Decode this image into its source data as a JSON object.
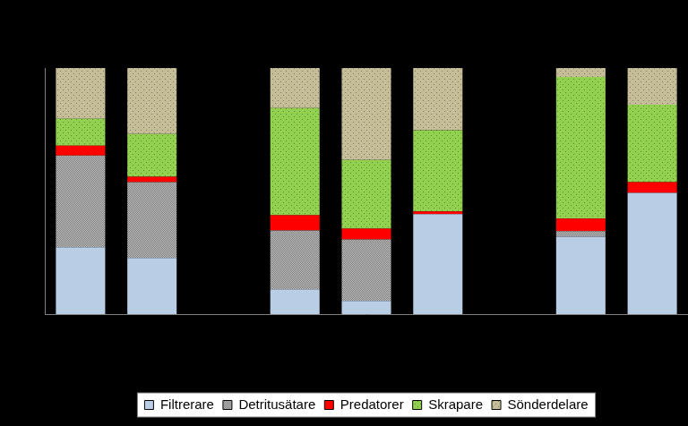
{
  "chart_data": {
    "type": "bar",
    "stacked": true,
    "legend": "bottom",
    "grid": false,
    "tick_labels": false,
    "categories": [
      null,
      null,
      null,
      null,
      null,
      null,
      null,
      null,
      null
    ],
    "ylim": [
      0,
      100
    ],
    "series": [
      {
        "name": "Filtrerare",
        "color": "#b9cde5",
        "values": [
          27.2,
          22.8,
          null,
          10.1,
          5.4,
          40.6,
          null,
          31.5,
          49.3
        ]
      },
      {
        "name": "Detritusätare",
        "color": "#bfbfbf",
        "values": [
          37.3,
          30.8,
          null,
          23.9,
          25.0,
          0,
          null,
          2.2,
          0
        ]
      },
      {
        "name": "Predatorer",
        "color": "#ff0000",
        "values": [
          4.0,
          2.2,
          null,
          6.2,
          4.3,
          1.1,
          null,
          5.1,
          4.3
        ]
      },
      {
        "name": "Skrapare",
        "color": "#92d050",
        "values": [
          10.9,
          17.4,
          null,
          43.5,
          27.9,
          33.0,
          null,
          57.6,
          31.5
        ]
      },
      {
        "name": "Sönderdelare",
        "color": "#c4bd97",
        "values": [
          20.6,
          26.8,
          null,
          16.3,
          37.4,
          25.3,
          null,
          3.6,
          14.9
        ]
      }
    ]
  }
}
